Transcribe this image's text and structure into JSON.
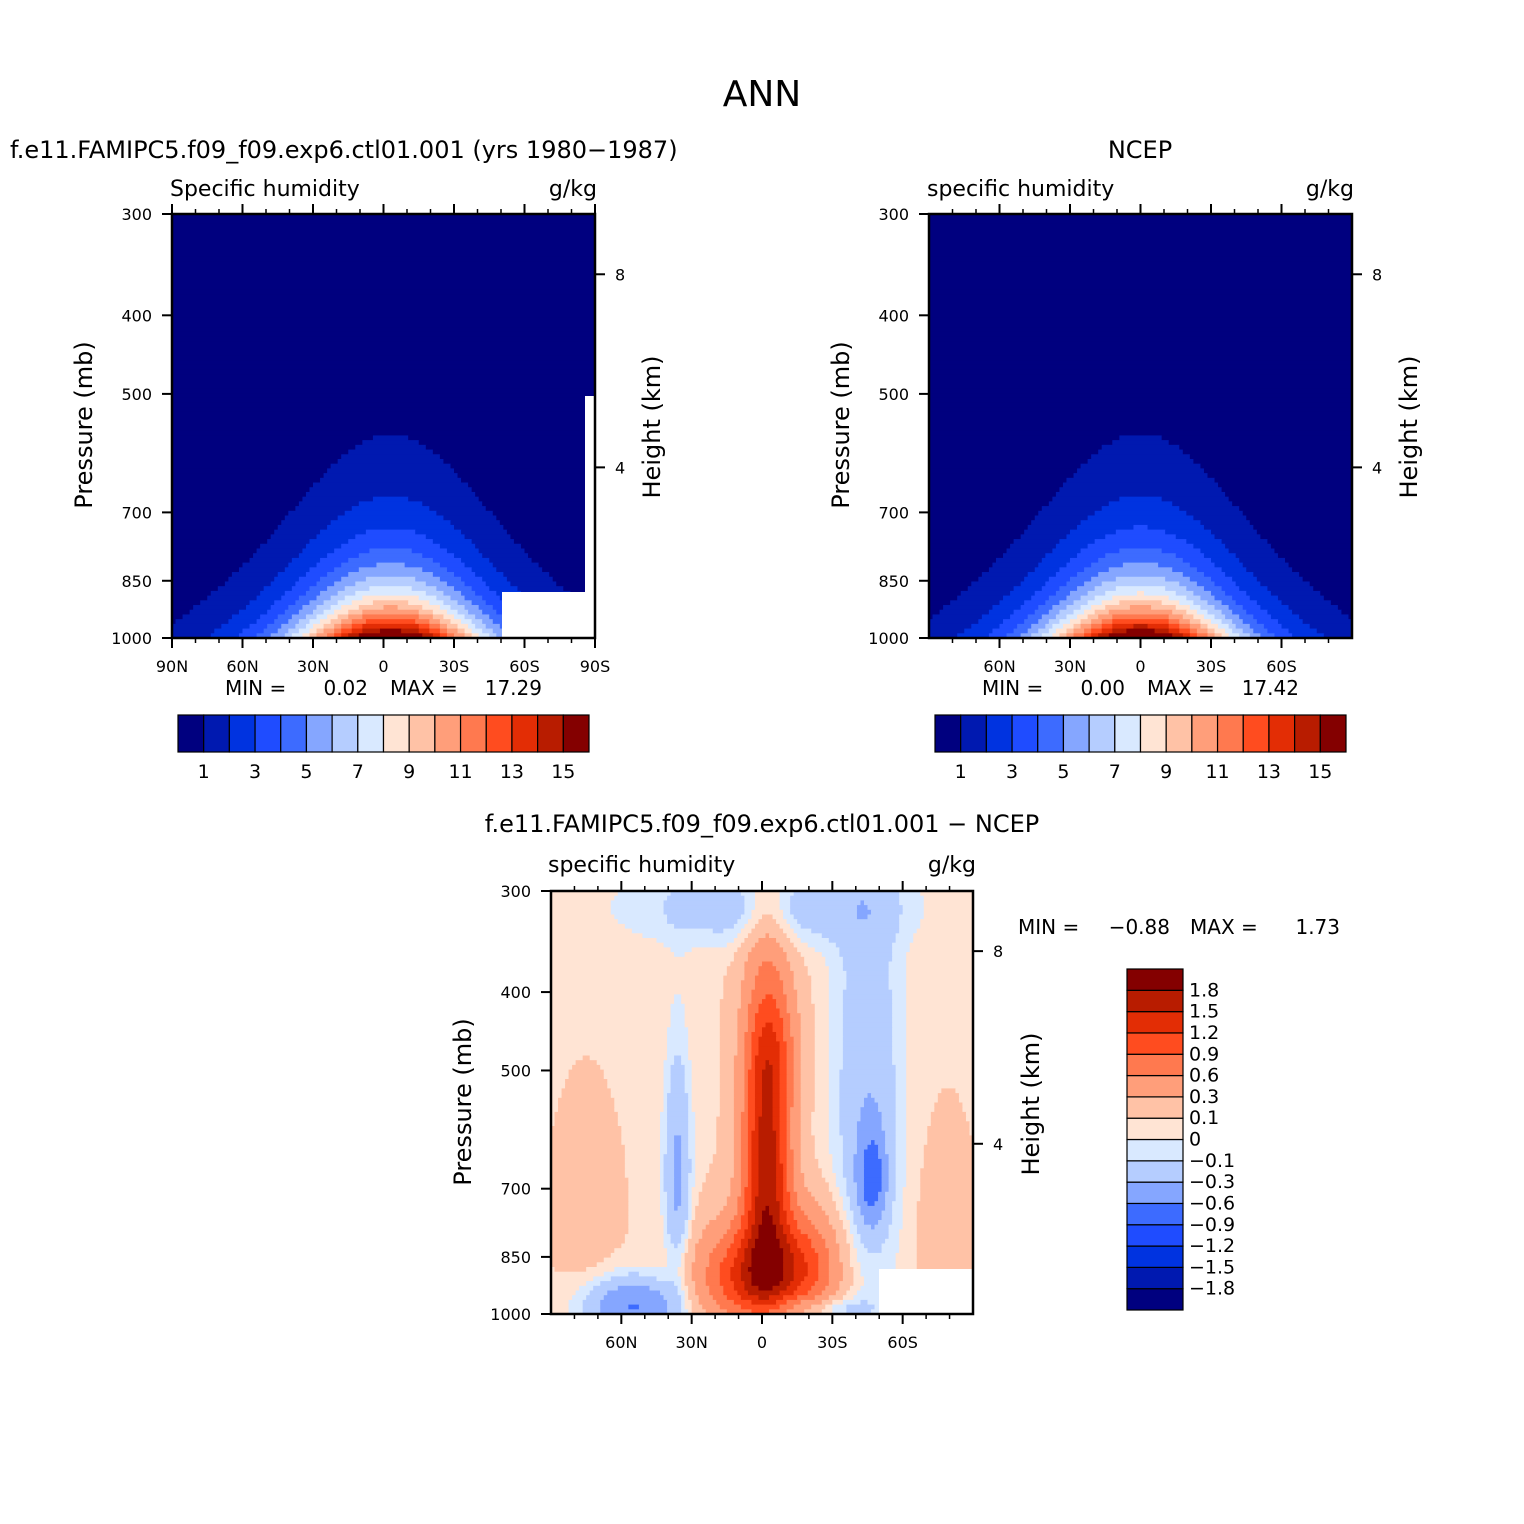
{
  "page_title": "ANN",
  "chart_data": [
    {
      "type": "heatmap",
      "title": "f.e11.FAMIPC5.f09_f09.exp6.ctl01.001 (yrs 1980−1987)",
      "left_subtitle": "Specific humidity",
      "units": "g/kg",
      "ylabel": "Pressure (mb)",
      "y2label": "Height (km)",
      "x_ticks": [
        "90N",
        "60N",
        "30N",
        "0",
        "30S",
        "60S",
        "90S"
      ],
      "y_ticks": [
        "300",
        "400",
        "500",
        "700",
        "850",
        "1000"
      ],
      "y2_ticks": [
        "8",
        "4"
      ],
      "min_label": "MIN =",
      "min_value": "0.02",
      "max_label": "MAX =",
      "max_value": "17.29",
      "colorbar_labels": [
        "1",
        "3",
        "5",
        "7",
        "9",
        "11",
        "13",
        "15"
      ],
      "levels": [
        1,
        2,
        3,
        4,
        5,
        6,
        7,
        8,
        9,
        10,
        11,
        12,
        13,
        14,
        15
      ],
      "colors": [
        "#00007f",
        "#0019b0",
        "#0033e0",
        "#1f4cff",
        "#3d6bff",
        "#85a6ff",
        "#b5cdff",
        "#d9e9ff",
        "#ffe4d4",
        "#ffc2a6",
        "#ff9e7a",
        "#ff794f",
        "#ff4c1f",
        "#e32d05",
        "#b81c00",
        "#840000"
      ],
      "peak_value": 17.29,
      "peak_lat": -3,
      "peak_p": 985,
      "ylim": [
        300,
        1000
      ],
      "xlim": [
        90,
        -90
      ],
      "masked_corner": true
    },
    {
      "type": "heatmap",
      "title": "NCEP",
      "left_subtitle": "specific humidity",
      "units": "g/kg",
      "ylabel": "Pressure (mb)",
      "y2label": "Height (km)",
      "x_ticks": [
        "60N",
        "30N",
        "0",
        "30S",
        "60S"
      ],
      "y_ticks": [
        "300",
        "400",
        "500",
        "700",
        "850",
        "1000"
      ],
      "y2_ticks": [
        "8",
        "4"
      ],
      "min_label": "MIN =",
      "min_value": "0.00",
      "max_label": "MAX =",
      "max_value": "17.42",
      "colorbar_labels": [
        "1",
        "3",
        "5",
        "7",
        "9",
        "11",
        "13",
        "15"
      ],
      "levels": [
        1,
        2,
        3,
        4,
        5,
        6,
        7,
        8,
        9,
        10,
        11,
        12,
        13,
        14,
        15
      ],
      "colors": [
        "#00007f",
        "#0019b0",
        "#0033e0",
        "#1f4cff",
        "#3d6bff",
        "#85a6ff",
        "#b5cdff",
        "#d9e9ff",
        "#ffe4d4",
        "#ffc2a6",
        "#ff9e7a",
        "#ff794f",
        "#ff4c1f",
        "#e32d05",
        "#b81c00",
        "#840000"
      ],
      "peak_value": 17.42,
      "peak_lat": 0,
      "peak_p": 985,
      "ylim": [
        300,
        1000
      ],
      "xlim": [
        90,
        -90
      ],
      "masked_corner": false
    },
    {
      "type": "heatmap",
      "title": "f.e11.FAMIPC5.f09_f09.exp6.ctl01.001 − NCEP",
      "left_subtitle": "specific humidity",
      "units": "g/kg",
      "ylabel": "Pressure (mb)",
      "y2label": "Height (km)",
      "x_ticks": [
        "60N",
        "30N",
        "0",
        "30S",
        "60S"
      ],
      "y_ticks": [
        "300",
        "400",
        "500",
        "700",
        "850",
        "1000"
      ],
      "y2_ticks": [
        "8",
        "4"
      ],
      "min_label": "MIN =",
      "min_value": "−0.88",
      "max_label": "MAX =",
      "max_value": "1.73",
      "colorbar_labels": [
        "1.8",
        "1.5",
        "1.2",
        "0.9",
        "0.6",
        "0.3",
        "0.1",
        "0",
        "−0.1",
        "−0.3",
        "−0.6",
        "−0.9",
        "−1.2",
        "−1.5",
        "−1.8"
      ],
      "levels": [
        -1.8,
        -1.5,
        -1.2,
        -0.9,
        -0.6,
        -0.3,
        -0.1,
        0,
        0.1,
        0.3,
        0.6,
        0.9,
        1.2,
        1.5,
        1.8
      ],
      "colors": [
        "#00007f",
        "#0019b0",
        "#0033e0",
        "#1f4cff",
        "#3d6bff",
        "#85a6ff",
        "#b5cdff",
        "#d9e9ff",
        "#ffe4d4",
        "#ffc2a6",
        "#ff9e7a",
        "#ff794f",
        "#ff4c1f",
        "#e32d05",
        "#b81c00",
        "#840000"
      ],
      "ylim": [
        300,
        1000
      ],
      "xlim": [
        90,
        -90
      ],
      "masked_corner": true
    }
  ]
}
